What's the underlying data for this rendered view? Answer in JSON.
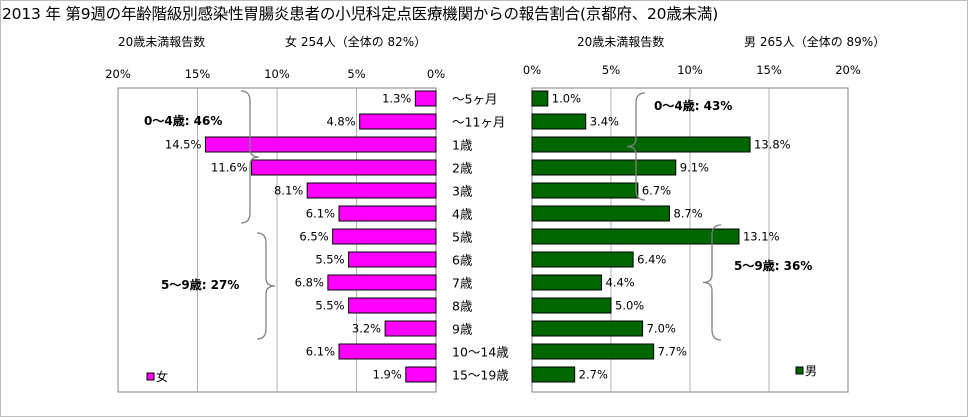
{
  "title": "2013 年 第9週の年齢階級別感染性胃腸炎患者の小児科定点医療機関からの報告割合(京都府、20歳未満)",
  "female": {
    "header_label": "20歳未満報告数",
    "header_stats": "女 254人（全体の 82%）",
    "legend": "女",
    "color": "#ff00ff"
  },
  "male": {
    "header_label": "20歳未満報告数",
    "header_stats": "男 265人（全体の 89%）",
    "legend": "男",
    "color": "#006600"
  },
  "brackets": {
    "female_0_4": "0〜4歳: 46%",
    "female_5_9": "5〜9歳: 27%",
    "male_0_4": "0〜4歳: 43%",
    "male_5_9": "5〜9歳: 36%"
  },
  "chart_data": {
    "type": "bar",
    "categories": [
      "〜5ヶ月",
      "〜11ヶ月",
      "1歳",
      "2歳",
      "3歳",
      "4歳",
      "5歳",
      "6歳",
      "7歳",
      "8歳",
      "9歳",
      "10〜14歳",
      "15〜19歳"
    ],
    "series": [
      {
        "name": "女",
        "values": [
          1.3,
          4.8,
          14.5,
          11.6,
          8.1,
          6.1,
          6.5,
          5.5,
          6.8,
          5.5,
          3.2,
          6.1,
          1.9
        ]
      },
      {
        "name": "男",
        "values": [
          1.0,
          3.4,
          13.8,
          9.1,
          6.7,
          8.7,
          13.1,
          6.4,
          4.4,
          5.0,
          7.0,
          7.7,
          2.7
        ]
      }
    ],
    "data_labels_female": [
      "1.3%",
      "4.8%",
      "14.5%",
      "11.6%",
      "8.1%",
      "6.1%",
      "6.5%",
      "5.5%",
      "6.8%",
      "5.5%",
      "3.2%",
      "6.1%",
      "1.9%"
    ],
    "data_labels_male": [
      "1.0%",
      "3.4%",
      "13.8%",
      "9.1%",
      "6.7%",
      "8.7%",
      "13.1%",
      "6.4%",
      "4.4%",
      "5.0%",
      "7.0%",
      "7.7%",
      "2.7%"
    ],
    "female_axis_ticks": [
      "20%",
      "15%",
      "10%",
      "5%",
      "0%"
    ],
    "male_axis_ticks": [
      "0%",
      "5%",
      "10%",
      "15%",
      "20%"
    ],
    "xlim": [
      0,
      20
    ],
    "grid": "vertical",
    "layout": "butterfly"
  }
}
